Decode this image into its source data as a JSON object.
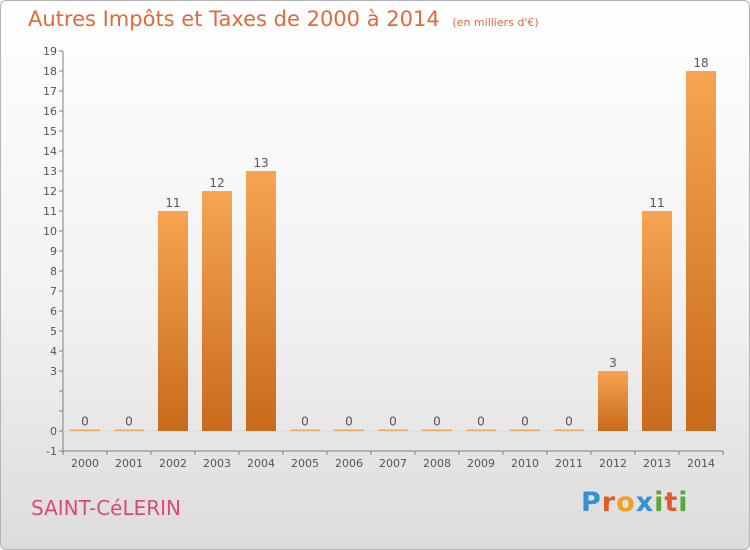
{
  "header": {
    "title": "Autres Impôts et Taxes de 2000 à 2014",
    "unit": "(en milliers d'€)"
  },
  "footer": {
    "city": "SAINT-CéLERIN",
    "logo_letters": [
      "P",
      "r",
      "o",
      "x",
      "i",
      "t",
      "i"
    ],
    "logo_colors": [
      "#3a8fd0",
      "#e05a2a",
      "#f0a020",
      "#3a8fd0",
      "#5aa832",
      "#e05a2a",
      "#5aa832"
    ]
  },
  "colors": {
    "bar_top": "#f6a552",
    "bar_bottom": "#c86a1c",
    "axis": "#808080",
    "grid": "#d0d0d0",
    "label": "#555555",
    "title": "#e06a3c",
    "city": "#d94a7a"
  },
  "chart_data": {
    "type": "bar",
    "title": "Autres Impôts et Taxes de 2000 à 2014",
    "subtitle": "(en milliers d'€)",
    "xlabel": "",
    "ylabel": "",
    "categories": [
      "2000",
      "2001",
      "2002",
      "2003",
      "2004",
      "2005",
      "2006",
      "2007",
      "2008",
      "2009",
      "2010",
      "2011",
      "2012",
      "2013",
      "2014"
    ],
    "values": [
      0,
      0,
      11,
      12,
      13,
      0,
      0,
      0,
      0,
      0,
      0,
      0,
      3,
      11,
      18
    ],
    "data_labels": [
      "0",
      "0",
      "11",
      "12",
      "13",
      "0",
      "0",
      "0",
      "0",
      "0",
      "0",
      "0",
      "3",
      "11",
      "18"
    ],
    "ylim": [
      -1,
      19
    ],
    "yticks": [
      -1,
      0,
      1,
      2,
      3,
      4,
      5,
      6,
      7,
      8,
      9,
      10,
      11,
      12,
      13,
      14,
      15,
      16,
      17,
      18,
      19
    ],
    "ytick_labels": [
      "-1",
      "0",
      "",
      "",
      "3",
      "4",
      "5",
      "6",
      "7",
      "8",
      "9",
      "10",
      "11",
      "12",
      "13",
      "14",
      "15",
      "16",
      "17",
      "18",
      "19"
    ],
    "grid": false,
    "legend": "none"
  }
}
